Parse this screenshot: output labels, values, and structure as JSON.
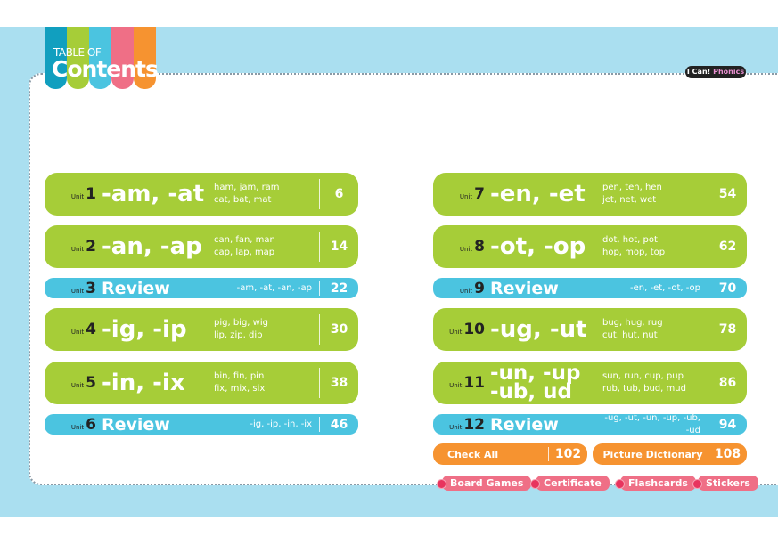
{
  "header": {
    "title_small": "TABLE OF",
    "title_big": "Contents",
    "logo_colors": [
      "#119fbf",
      "#a6cd38",
      "#4bc4e0",
      "#ef6f86",
      "#f69330"
    ],
    "brand": "I Can!",
    "brand_accent": "Phonics"
  },
  "unit_label": "Unit",
  "units": [
    {
      "num": "1",
      "title": "-am, -at",
      "words": [
        "ham, jam, ram",
        "cat, bat, mat"
      ],
      "page": "6"
    },
    {
      "num": "2",
      "title": "-an, -ap",
      "words": [
        "can, fan, man",
        "cap, lap, map"
      ],
      "page": "14"
    },
    {
      "num": "3",
      "title": "Review",
      "words": [
        "-am, -at, -an, -ap"
      ],
      "page": "22"
    },
    {
      "num": "4",
      "title": "-ig, -ip",
      "words": [
        "pig, big, wig",
        "lip, zip, dip"
      ],
      "page": "30"
    },
    {
      "num": "5",
      "title": "-in, -ix",
      "words": [
        "bin, fin, pin",
        "fix, mix, six"
      ],
      "page": "38"
    },
    {
      "num": "6",
      "title": "Review",
      "words": [
        "-ig, -ip, -in, -ix"
      ],
      "page": "46"
    },
    {
      "num": "7",
      "title": "-en, -et",
      "words": [
        "pen, ten, hen",
        "jet, net, wet"
      ],
      "page": "54"
    },
    {
      "num": "8",
      "title": "-ot, -op",
      "words": [
        "dot, hot, pot",
        "hop, mop, top"
      ],
      "page": "62"
    },
    {
      "num": "9",
      "title": "Review",
      "words": [
        "-en, -et, -ot, -op"
      ],
      "page": "70"
    },
    {
      "num": "10",
      "title": "-ug, -ut",
      "words": [
        "bug, hug, rug",
        "cut, hut, nut"
      ],
      "page": "78"
    },
    {
      "num": "11",
      "title": "-un, -up\n-ub, ud",
      "words": [
        "sun, run, cup, pup",
        "rub, tub, bud, mud"
      ],
      "page": "86"
    },
    {
      "num": "12",
      "title": "Review",
      "words": [
        "-ug, -ut, -un, -up, -ub, -ud"
      ],
      "page": "94"
    }
  ],
  "extras": [
    {
      "label": "Check All",
      "page": "102"
    },
    {
      "label": "Picture Dictionary",
      "page": "108"
    }
  ],
  "tabs": [
    "Board Games",
    "Certificate",
    "Flashcards",
    "Stickers"
  ]
}
